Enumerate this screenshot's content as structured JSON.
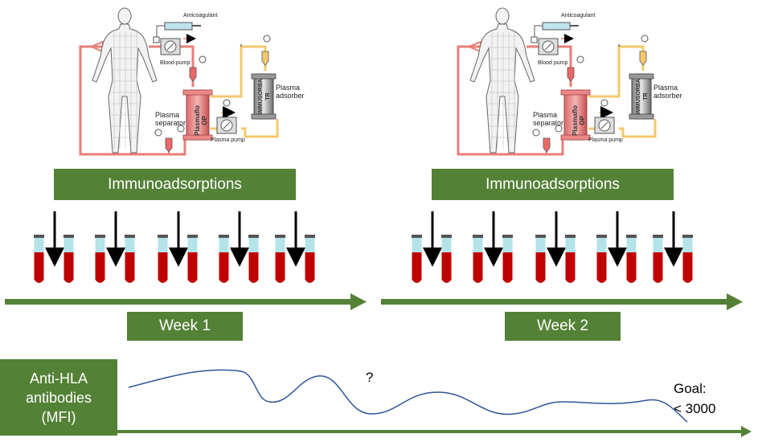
{
  "panels": [
    {
      "anticoagulant": "Anticoagulant",
      "blood_pump": "Blood pump",
      "plasma_separator": "Plasma separator",
      "plasma_pump": "Plasma pump",
      "plasma_adsorber": "Plasma adsorber",
      "separator_device": "Plasmaflo OP",
      "adsorber_device": "IMMUSORBA TR"
    },
    {
      "anticoagulant": "Anticoagulant",
      "blood_pump": "Blood pump",
      "plasma_separator": "Plasma separator",
      "plasma_pump": "Plasma pump",
      "plasma_adsorber": "Plasma adsorber",
      "separator_device": "Plasmaflo OP",
      "adsorber_device": "IMMUSORBA TR"
    }
  ],
  "immunoadsorptions_label": "Immunoadsorptions",
  "weeks": [
    "Week 1",
    "Week 2"
  ],
  "antibody_label": [
    "Anti-HLA",
    "antibodies",
    "(MFI)"
  ],
  "question_mark": "?",
  "goal_label": [
    "Goal:",
    "< 3000"
  ],
  "colors": {
    "green": "#538135",
    "tube_blood": "#c00000",
    "tube_serum": "#b4e3ea",
    "tube_cap": "#555555",
    "curve": "#2f5597",
    "circuit_red": "#e87e78",
    "circuit_yellow": "#f5c86b"
  },
  "tube_groups_per_week": 5
}
